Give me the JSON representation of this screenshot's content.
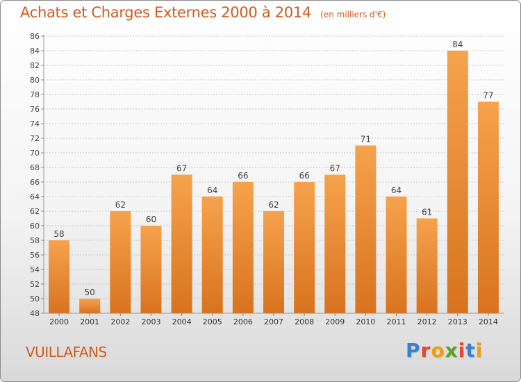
{
  "header": {
    "title": "Achats et Charges Externes 2000 à 2014",
    "unit": "(en milliers d'€)"
  },
  "footer": {
    "commune": "VUILLAFANS"
  },
  "logo": {
    "text": "Proxiti",
    "letter_colors": [
      "#3a7fd1",
      "#e6452f",
      "#f39c12",
      "#5aa02c",
      "#e6452f",
      "#3a7fd1",
      "#f39c12"
    ]
  },
  "colors": {
    "bar_light": "#f6a24c",
    "bar_dark": "#d8731f",
    "accent": "#d05a1e"
  },
  "chart_data": {
    "type": "bar",
    "title": "Achats et Charges Externes 2000 à 2014",
    "subtitle": "(en milliers d'€)",
    "categories": [
      "2000",
      "2001",
      "2002",
      "2003",
      "2004",
      "2005",
      "2006",
      "2007",
      "2008",
      "2009",
      "2010",
      "2011",
      "2012",
      "2013",
      "2014"
    ],
    "values": [
      58,
      50,
      62,
      60,
      67,
      64,
      66,
      62,
      66,
      67,
      71,
      64,
      61,
      84,
      77
    ],
    "ylim": [
      48,
      86
    ],
    "yticks": [
      48,
      50,
      52,
      54,
      56,
      58,
      60,
      62,
      64,
      66,
      68,
      70,
      72,
      74,
      76,
      78,
      80,
      82,
      84,
      86
    ],
    "grid": true,
    "data_labels": true
  }
}
